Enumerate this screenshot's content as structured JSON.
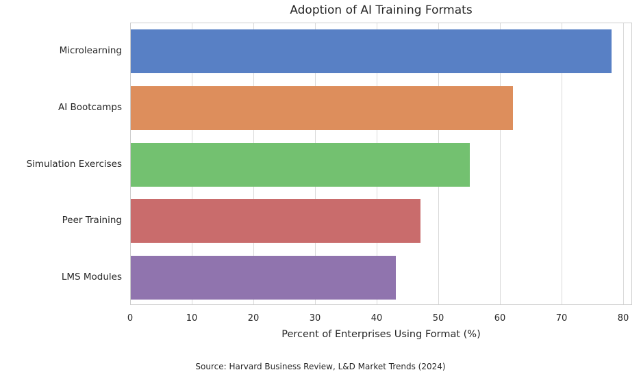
{
  "chart_data": {
    "type": "bar",
    "orientation": "horizontal",
    "title": "Adoption of AI Training Formats",
    "categories": [
      "Microlearning",
      "AI Bootcamps",
      "Simulation Exercises",
      "Peer Training",
      "LMS Modules"
    ],
    "values": [
      78,
      62,
      55,
      47,
      43
    ],
    "bar_colors": [
      "#5880c5",
      "#dd8e5c",
      "#73c170",
      "#c96c6c",
      "#9074ae"
    ],
    "xlabel": "Percent of Enterprises Using Format (%)",
    "ylabel": "",
    "xlim": [
      0,
      81.5
    ],
    "xticks": [
      0,
      10,
      20,
      30,
      40,
      50,
      60,
      70,
      80
    ],
    "grid": true,
    "legend": "none",
    "source": "Source: Harvard Business Review, L&D Market Trends (2024)"
  }
}
